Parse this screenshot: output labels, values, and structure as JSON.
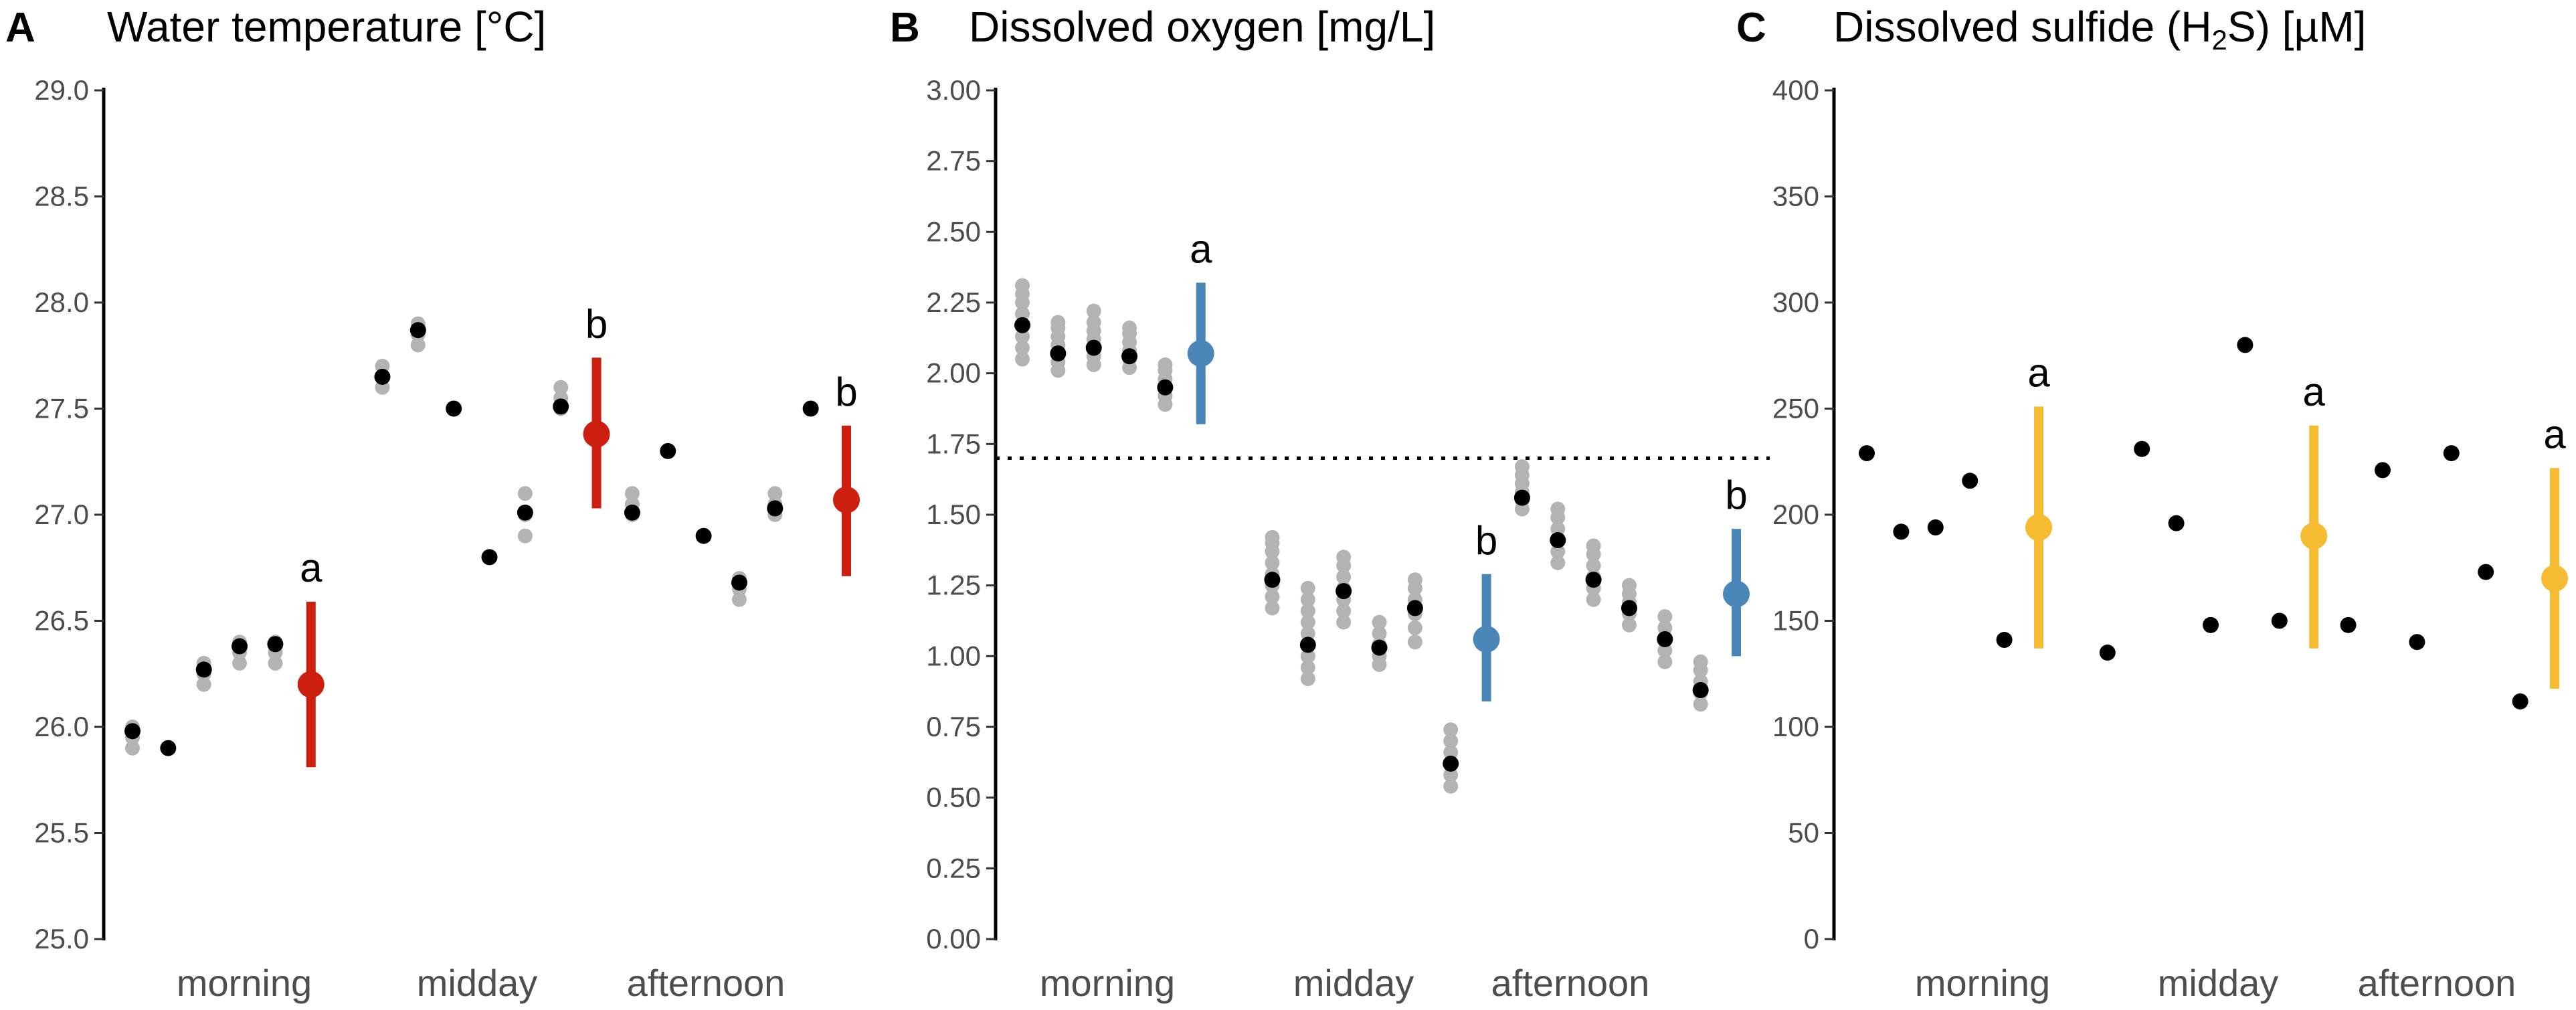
{
  "chart_data": [
    {
      "type": "scatter",
      "letter": "A",
      "title": "Water temperature [°C]",
      "accent": "#cc1f0f",
      "ylim": [
        25.0,
        29.0
      ],
      "yticks": [
        "25.0",
        "25.5",
        "26.0",
        "26.5",
        "27.0",
        "27.5",
        "28.0",
        "28.5",
        "29.0"
      ],
      "categories": [
        "morning",
        "midday",
        "afternoon"
      ],
      "raw_series": [
        {
          "x": 1,
          "values": [
            25.9,
            25.95,
            26.0
          ]
        },
        {
          "x": 3,
          "values": [
            26.2,
            26.25,
            26.3
          ]
        },
        {
          "x": 4,
          "values": [
            26.3,
            26.35,
            26.4
          ]
        },
        {
          "x": 5,
          "values": [
            26.3,
            26.35,
            26.4
          ]
        },
        {
          "x": 8,
          "values": [
            27.6,
            27.65,
            27.7
          ]
        },
        {
          "x": 9,
          "values": [
            27.8,
            27.85,
            27.9
          ]
        },
        {
          "x": 12,
          "values": [
            26.9,
            27.0,
            27.1
          ]
        },
        {
          "x": 13,
          "values": [
            27.5,
            27.55,
            27.6
          ]
        },
        {
          "x": 15,
          "values": [
            27.0,
            27.05,
            27.1
          ]
        },
        {
          "x": 18,
          "values": [
            26.6,
            26.65,
            26.7
          ]
        },
        {
          "x": 19,
          "values": [
            27.0,
            27.05,
            27.1
          ]
        }
      ],
      "mean_points": [
        {
          "x": 1,
          "y": 25.98
        },
        {
          "x": 2,
          "y": 25.9
        },
        {
          "x": 3,
          "y": 26.27
        },
        {
          "x": 4,
          "y": 26.38
        },
        {
          "x": 5,
          "y": 26.39
        },
        {
          "x": 8,
          "y": 27.65
        },
        {
          "x": 9,
          "y": 27.87
        },
        {
          "x": 10,
          "y": 27.5
        },
        {
          "x": 11,
          "y": 26.8
        },
        {
          "x": 12,
          "y": 27.01
        },
        {
          "x": 13,
          "y": 27.51
        },
        {
          "x": 15,
          "y": 27.01
        },
        {
          "x": 16,
          "y": 27.3
        },
        {
          "x": 17,
          "y": 26.9
        },
        {
          "x": 18,
          "y": 26.68
        },
        {
          "x": 19,
          "y": 27.03
        },
        {
          "x": 20,
          "y": 27.5
        }
      ],
      "group_summary": [
        {
          "x": 6,
          "mean": 26.2,
          "low": 25.81,
          "high": 26.59,
          "letter": "a"
        },
        {
          "x": 14,
          "mean": 27.38,
          "low": 27.03,
          "high": 27.74,
          "letter": "b"
        },
        {
          "x": 21,
          "mean": 27.07,
          "low": 26.71,
          "high": 27.42,
          "letter": "b"
        }
      ]
    },
    {
      "type": "scatter",
      "letter": "B",
      "title": "Dissolved oxygen [mg/L]",
      "accent": "#4a86b8",
      "ylim": [
        0.0,
        3.0
      ],
      "yticks": [
        "0.00",
        "0.25",
        "0.50",
        "0.75",
        "1.00",
        "1.25",
        "1.50",
        "1.75",
        "2.00",
        "2.25",
        "2.50",
        "2.75",
        "3.00"
      ],
      "categories": [
        "morning",
        "midday",
        "afternoon"
      ],
      "reference_line": 1.7,
      "raw_series": [
        {
          "x": 1,
          "values": [
            2.05,
            2.09,
            2.13,
            2.17,
            2.21,
            2.25,
            2.28,
            2.31
          ]
        },
        {
          "x": 2,
          "values": [
            2.01,
            2.04,
            2.07,
            2.1,
            2.13,
            2.16,
            2.18
          ]
        },
        {
          "x": 3,
          "values": [
            2.03,
            2.06,
            2.09,
            2.12,
            2.15,
            2.18,
            2.22
          ]
        },
        {
          "x": 4,
          "values": [
            2.02,
            2.05,
            2.08,
            2.11,
            2.14,
            2.16
          ]
        },
        {
          "x": 5,
          "values": [
            1.89,
            1.92,
            1.95,
            1.98,
            2.01,
            2.03
          ]
        },
        {
          "x": 8,
          "values": [
            1.17,
            1.21,
            1.25,
            1.29,
            1.33,
            1.37,
            1.4,
            1.42
          ]
        },
        {
          "x": 9,
          "values": [
            0.92,
            0.96,
            1.0,
            1.04,
            1.08,
            1.12,
            1.16,
            1.2,
            1.24
          ]
        },
        {
          "x": 10,
          "values": [
            1.12,
            1.16,
            1.2,
            1.24,
            1.28,
            1.32,
            1.35
          ]
        },
        {
          "x": 11,
          "values": [
            0.97,
            1.0,
            1.04,
            1.08,
            1.12
          ]
        },
        {
          "x": 12,
          "values": [
            1.05,
            1.1,
            1.15,
            1.2,
            1.24,
            1.27
          ]
        },
        {
          "x": 13,
          "values": [
            0.54,
            0.58,
            0.62,
            0.66,
            0.7,
            0.74
          ]
        },
        {
          "x": 15,
          "values": [
            1.52,
            1.55,
            1.58,
            1.61,
            1.64,
            1.67
          ]
        },
        {
          "x": 16,
          "values": [
            1.33,
            1.37,
            1.41,
            1.45,
            1.49,
            1.52
          ]
        },
        {
          "x": 17,
          "values": [
            1.2,
            1.24,
            1.28,
            1.32,
            1.36,
            1.39
          ]
        },
        {
          "x": 18,
          "values": [
            1.11,
            1.15,
            1.19,
            1.22,
            1.25
          ]
        },
        {
          "x": 19,
          "values": [
            0.98,
            1.02,
            1.06,
            1.1,
            1.14
          ]
        },
        {
          "x": 20,
          "values": [
            0.83,
            0.87,
            0.91,
            0.95,
            0.98
          ]
        }
      ],
      "mean_points": [
        {
          "x": 1,
          "y": 2.17
        },
        {
          "x": 2,
          "y": 2.07
        },
        {
          "x": 3,
          "y": 2.09
        },
        {
          "x": 4,
          "y": 2.06
        },
        {
          "x": 5,
          "y": 1.95
        },
        {
          "x": 8,
          "y": 1.27
        },
        {
          "x": 9,
          "y": 1.04
        },
        {
          "x": 10,
          "y": 1.23
        },
        {
          "x": 11,
          "y": 1.03
        },
        {
          "x": 12,
          "y": 1.17
        },
        {
          "x": 13,
          "y": 0.62
        },
        {
          "x": 15,
          "y": 1.56
        },
        {
          "x": 16,
          "y": 1.41
        },
        {
          "x": 17,
          "y": 1.27
        },
        {
          "x": 18,
          "y": 1.17
        },
        {
          "x": 19,
          "y": 1.06
        },
        {
          "x": 20,
          "y": 0.88
        }
      ],
      "group_summary": [
        {
          "x": 6,
          "mean": 2.07,
          "low": 1.82,
          "high": 2.32,
          "letter": "a"
        },
        {
          "x": 14,
          "mean": 1.06,
          "low": 0.84,
          "high": 1.29,
          "letter": "b"
        },
        {
          "x": 21,
          "mean": 1.22,
          "low": 1.0,
          "high": 1.45,
          "letter": "b"
        }
      ]
    },
    {
      "type": "scatter",
      "letter": "C",
      "title_main": "Dissolved sulfide (H",
      "title_sub": "2",
      "title_end": "S) [µM]",
      "accent": "#f5bc32",
      "ylim": [
        0,
        400
      ],
      "yticks": [
        "0",
        "50",
        "100",
        "150",
        "200",
        "250",
        "300",
        "350",
        "400"
      ],
      "categories": [
        "morning",
        "midday",
        "afternoon"
      ],
      "raw_series": [],
      "mean_points": [
        {
          "x": 1,
          "y": 229
        },
        {
          "x": 2,
          "y": 192
        },
        {
          "x": 3,
          "y": 194
        },
        {
          "x": 4,
          "y": 216
        },
        {
          "x": 5,
          "y": 141
        },
        {
          "x": 8,
          "y": 135
        },
        {
          "x": 9,
          "y": 231
        },
        {
          "x": 10,
          "y": 196
        },
        {
          "x": 11,
          "y": 148
        },
        {
          "x": 12,
          "y": 280
        },
        {
          "x": 13,
          "y": 150
        },
        {
          "x": 15,
          "y": 148
        },
        {
          "x": 16,
          "y": 221
        },
        {
          "x": 17,
          "y": 140
        },
        {
          "x": 18,
          "y": 229
        },
        {
          "x": 19,
          "y": 173
        },
        {
          "x": 20,
          "y": 112
        }
      ],
      "group_summary": [
        {
          "x": 6,
          "mean": 194,
          "low": 137,
          "high": 251,
          "letter": "a"
        },
        {
          "x": 14,
          "mean": 190,
          "low": 137,
          "high": 242,
          "letter": "a"
        },
        {
          "x": 21,
          "mean": 170,
          "low": 118,
          "high": 222,
          "letter": "a"
        }
      ]
    }
  ]
}
